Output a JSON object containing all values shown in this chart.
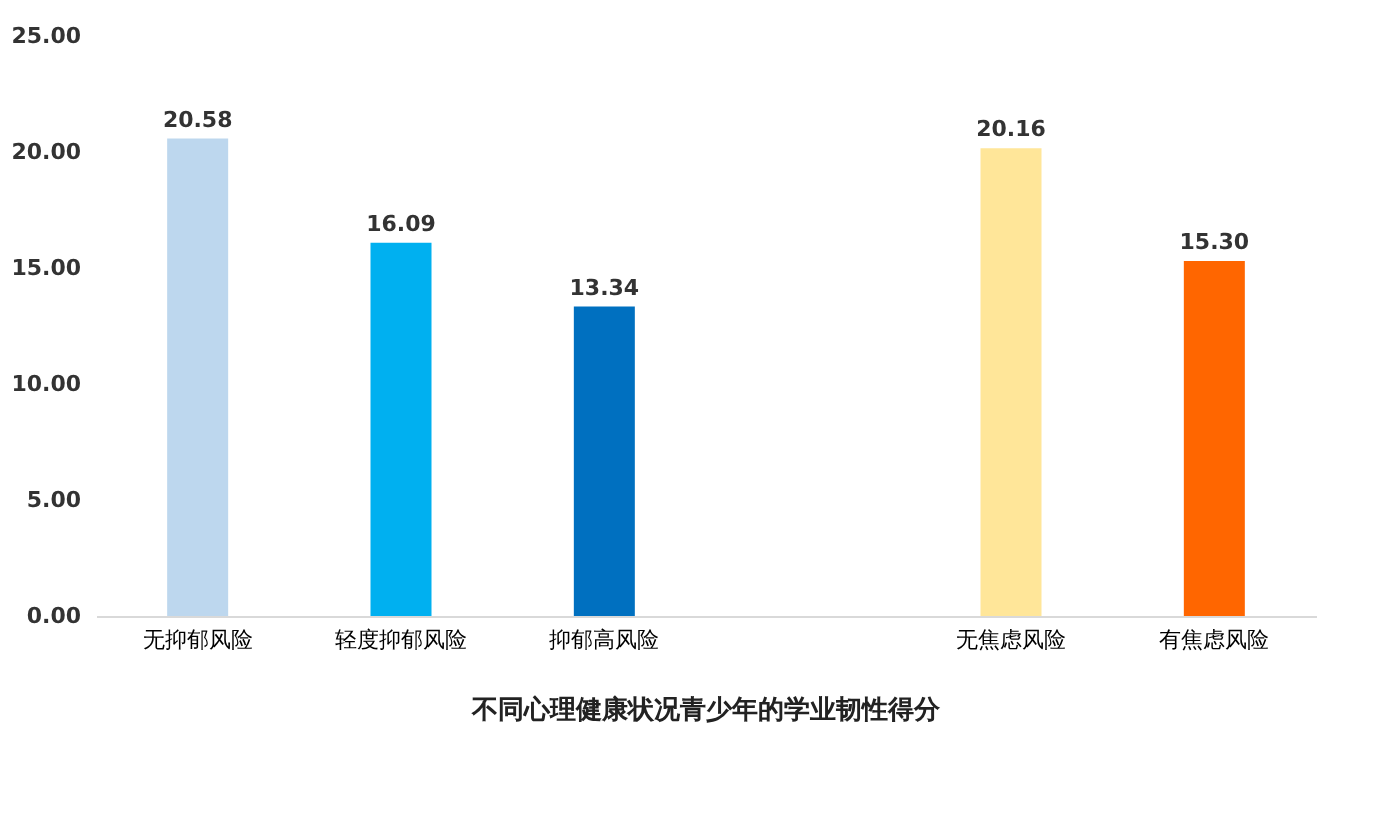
{
  "chart_data": {
    "type": "bar",
    "title": "不同心理健康状况青少年的学业韧性得分",
    "categories": [
      "无抑郁风险",
      "轻度抑郁风险",
      "抑郁高风险",
      null,
      "无焦虑风险",
      "有焦虑风险"
    ],
    "values": [
      20.58,
      16.09,
      13.34,
      null,
      20.16,
      15.3
    ],
    "colors": [
      "#bdd7ee",
      "#00b0f0",
      "#0070c0",
      "#ffffff",
      "#ffe699",
      "#ff6600"
    ],
    "value_labels": [
      "20.58",
      "16.09",
      "13.34",
      null,
      "20.16",
      "15.30"
    ],
    "ylim": [
      0,
      25
    ],
    "yticks": [
      {
        "value": 0,
        "label": "0.00"
      },
      {
        "value": 5,
        "label": "5.00"
      },
      {
        "value": 10,
        "label": "10.00"
      },
      {
        "value": 15,
        "label": "15.00"
      },
      {
        "value": 20,
        "label": "20.00"
      },
      {
        "value": 25,
        "label": "25.00"
      }
    ],
    "grid": false
  }
}
